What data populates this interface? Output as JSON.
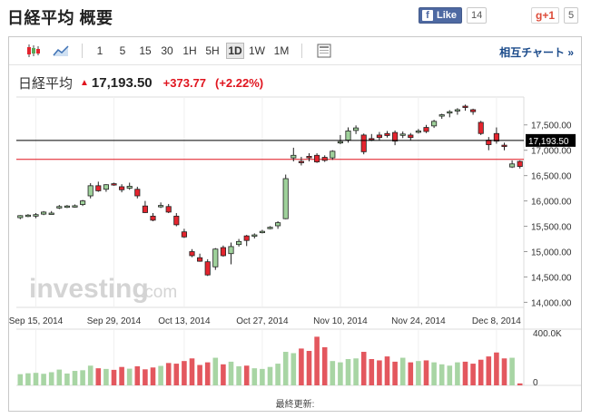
{
  "header": {
    "title": "日経平均 概要",
    "fb_like_label": "Like",
    "fb_like_count": "14",
    "gplus_label": "g+1",
    "gplus_count": "5"
  },
  "toolbar": {
    "candle_icon": "candlestick-icon",
    "line_icon": "line-chart-icon",
    "periods": [
      "1",
      "5",
      "15",
      "30",
      "1H",
      "5H",
      "1D",
      "1W",
      "1M"
    ],
    "active_period": "1D",
    "table_icon": "data-table-icon",
    "related_chart_label": "相互チャート »"
  },
  "quote": {
    "name": "日経平均",
    "price": "17,193.50",
    "change": "+373.77",
    "change_pct": "(+2.22%)",
    "direction": "up"
  },
  "watermark": {
    "brand": "investing",
    "suffix": ".com"
  },
  "footer": {
    "last_updated_label": "最終更新:"
  },
  "colors": {
    "up": "#9fd19b",
    "down": "#e4242e",
    "up_volume": "#a8d5a4",
    "down_volume": "#e3575e",
    "current_line": "#000000",
    "prev_close_line": "#e0141e",
    "accent_link": "#1a4a8a"
  },
  "chart_data": {
    "type": "candlestick",
    "title": "日経平均",
    "price_axis": {
      "min": 13900,
      "max": 18050,
      "ticks": [
        "17,500.00",
        "17,000.00",
        "16,500.00",
        "16,000.00",
        "15,500.00",
        "15,000.00",
        "14,500.00",
        "14,000.00"
      ],
      "tick_values": [
        17500,
        17000,
        16500,
        16000,
        15500,
        15000,
        14500,
        14000
      ],
      "current_value": 17193.5,
      "current_label": "17,193.50",
      "prev_close": 16819.73
    },
    "x_axis_labels": [
      "Sep 15, 2014",
      "Sep 29, 2014",
      "Oct 13, 2014",
      "Oct 27, 2014",
      "Nov 10, 2014",
      "Nov 24, 2014",
      "Dec 8, 2014"
    ],
    "x_axis_label_index": [
      2,
      12,
      21,
      31,
      41,
      51,
      61
    ],
    "volume_axis": {
      "max": 400000,
      "ticks": [
        "400.0K",
        "0"
      ],
      "tick_values": [
        400000,
        0
      ]
    },
    "candles": [
      {
        "o": 15670,
        "h": 15720,
        "l": 15640,
        "c": 15710
      },
      {
        "o": 15700,
        "h": 15740,
        "l": 15680,
        "c": 15720
      },
      {
        "o": 15700,
        "h": 15760,
        "l": 15660,
        "c": 15730
      },
      {
        "o": 15740,
        "h": 15800,
        "l": 15720,
        "c": 15780
      },
      {
        "o": 15760,
        "h": 15800,
        "l": 15740,
        "c": 15760
      },
      {
        "o": 15860,
        "h": 15920,
        "l": 15840,
        "c": 15890
      },
      {
        "o": 15880,
        "h": 15920,
        "l": 15860,
        "c": 15900
      },
      {
        "o": 15880,
        "h": 15930,
        "l": 15870,
        "c": 15905
      },
      {
        "o": 15930,
        "h": 16020,
        "l": 15900,
        "c": 16000
      },
      {
        "o": 16100,
        "h": 16350,
        "l": 16050,
        "c": 16300
      },
      {
        "o": 16300,
        "h": 16380,
        "l": 16180,
        "c": 16200
      },
      {
        "o": 16230,
        "h": 16330,
        "l": 16180,
        "c": 16320
      },
      {
        "o": 16340,
        "h": 16360,
        "l": 16300,
        "c": 16330
      },
      {
        "o": 16280,
        "h": 16330,
        "l": 16170,
        "c": 16220
      },
      {
        "o": 16250,
        "h": 16360,
        "l": 16220,
        "c": 16290
      },
      {
        "o": 16230,
        "h": 16280,
        "l": 16050,
        "c": 16100
      },
      {
        "o": 15900,
        "h": 16000,
        "l": 15760,
        "c": 15770
      },
      {
        "o": 15700,
        "h": 15760,
        "l": 15600,
        "c": 15620
      },
      {
        "o": 15900,
        "h": 15970,
        "l": 15860,
        "c": 15910
      },
      {
        "o": 15890,
        "h": 15940,
        "l": 15760,
        "c": 15780
      },
      {
        "o": 15700,
        "h": 15760,
        "l": 15500,
        "c": 15530
      },
      {
        "o": 15390,
        "h": 15450,
        "l": 15270,
        "c": 15290
      },
      {
        "o": 15000,
        "h": 15050,
        "l": 14890,
        "c": 14920
      },
      {
        "o": 14880,
        "h": 14960,
        "l": 14800,
        "c": 14810
      },
      {
        "o": 14800,
        "h": 14850,
        "l": 14520,
        "c": 14540
      },
      {
        "o": 14700,
        "h": 15070,
        "l": 14640,
        "c": 15050
      },
      {
        "o": 15080,
        "h": 15120,
        "l": 14900,
        "c": 14920
      },
      {
        "o": 14960,
        "h": 15180,
        "l": 14750,
        "c": 15100
      },
      {
        "o": 15140,
        "h": 15250,
        "l": 15100,
        "c": 15200
      },
      {
        "o": 15310,
        "h": 15330,
        "l": 15110,
        "c": 15220
      },
      {
        "o": 15320,
        "h": 15360,
        "l": 15260,
        "c": 15330
      },
      {
        "o": 15400,
        "h": 15430,
        "l": 15360,
        "c": 15400
      },
      {
        "o": 15470,
        "h": 15500,
        "l": 15440,
        "c": 15480
      },
      {
        "o": 15510,
        "h": 15600,
        "l": 15450,
        "c": 15570
      },
      {
        "o": 15650,
        "h": 16520,
        "l": 15640,
        "c": 16440
      },
      {
        "o": 16850,
        "h": 17050,
        "l": 16780,
        "c": 16900
      },
      {
        "o": 16780,
        "h": 16870,
        "l": 16700,
        "c": 16760
      },
      {
        "o": 16880,
        "h": 16940,
        "l": 16780,
        "c": 16850
      },
      {
        "o": 16900,
        "h": 16940,
        "l": 16750,
        "c": 16770
      },
      {
        "o": 16860,
        "h": 16900,
        "l": 16770,
        "c": 16800
      },
      {
        "o": 16850,
        "h": 17000,
        "l": 16810,
        "c": 16980
      },
      {
        "o": 17150,
        "h": 17300,
        "l": 17120,
        "c": 17170
      },
      {
        "o": 17200,
        "h": 17450,
        "l": 17150,
        "c": 17380
      },
      {
        "o": 17390,
        "h": 17490,
        "l": 17320,
        "c": 17440
      },
      {
        "o": 17300,
        "h": 17330,
        "l": 16920,
        "c": 16970
      },
      {
        "o": 17230,
        "h": 17320,
        "l": 17180,
        "c": 17220
      },
      {
        "o": 17300,
        "h": 17360,
        "l": 17200,
        "c": 17250
      },
      {
        "o": 17330,
        "h": 17380,
        "l": 17250,
        "c": 17290
      },
      {
        "o": 17350,
        "h": 17390,
        "l": 17100,
        "c": 17180
      },
      {
        "o": 17300,
        "h": 17370,
        "l": 17240,
        "c": 17320
      },
      {
        "o": 17300,
        "h": 17340,
        "l": 17200,
        "c": 17250
      },
      {
        "o": 17380,
        "h": 17420,
        "l": 17330,
        "c": 17380
      },
      {
        "o": 17450,
        "h": 17500,
        "l": 17340,
        "c": 17370
      },
      {
        "o": 17480,
        "h": 17600,
        "l": 17440,
        "c": 17570
      },
      {
        "o": 17680,
        "h": 17720,
        "l": 17620,
        "c": 17700
      },
      {
        "o": 17750,
        "h": 17790,
        "l": 17650,
        "c": 17760
      },
      {
        "o": 17780,
        "h": 17830,
        "l": 17700,
        "c": 17800
      },
      {
        "o": 17870,
        "h": 17900,
        "l": 17780,
        "c": 17850
      },
      {
        "o": 17800,
        "h": 17820,
        "l": 17700,
        "c": 17760
      },
      {
        "o": 17550,
        "h": 17580,
        "l": 17300,
        "c": 17330
      },
      {
        "o": 17200,
        "h": 17260,
        "l": 17000,
        "c": 17110
      },
      {
        "o": 17330,
        "h": 17450,
        "l": 17130,
        "c": 17180
      },
      {
        "o": 17100,
        "h": 17150,
        "l": 17000,
        "c": 17080
      },
      {
        "o": 16670,
        "h": 16800,
        "l": 16650,
        "c": 16730
      },
      {
        "o": 16780,
        "h": 16800,
        "l": 16640,
        "c": 16680
      }
    ],
    "volume": [
      85000,
      92000,
      95000,
      88000,
      100000,
      120000,
      90000,
      110000,
      115000,
      150000,
      130000,
      125000,
      118000,
      140000,
      127000,
      145000,
      122000,
      136000,
      148000,
      170000,
      165000,
      185000,
      205000,
      155000,
      175000,
      210000,
      160000,
      180000,
      145000,
      150000,
      130000,
      125000,
      140000,
      165000,
      255000,
      245000,
      280000,
      262000,
      370000,
      290000,
      185000,
      175000,
      200000,
      205000,
      255000,
      200000,
      190000,
      220000,
      180000,
      210000,
      175000,
      185000,
      190000,
      175000,
      160000,
      150000,
      175000,
      180000,
      165000,
      195000,
      220000,
      250000,
      205000,
      210000,
      15000
    ]
  }
}
